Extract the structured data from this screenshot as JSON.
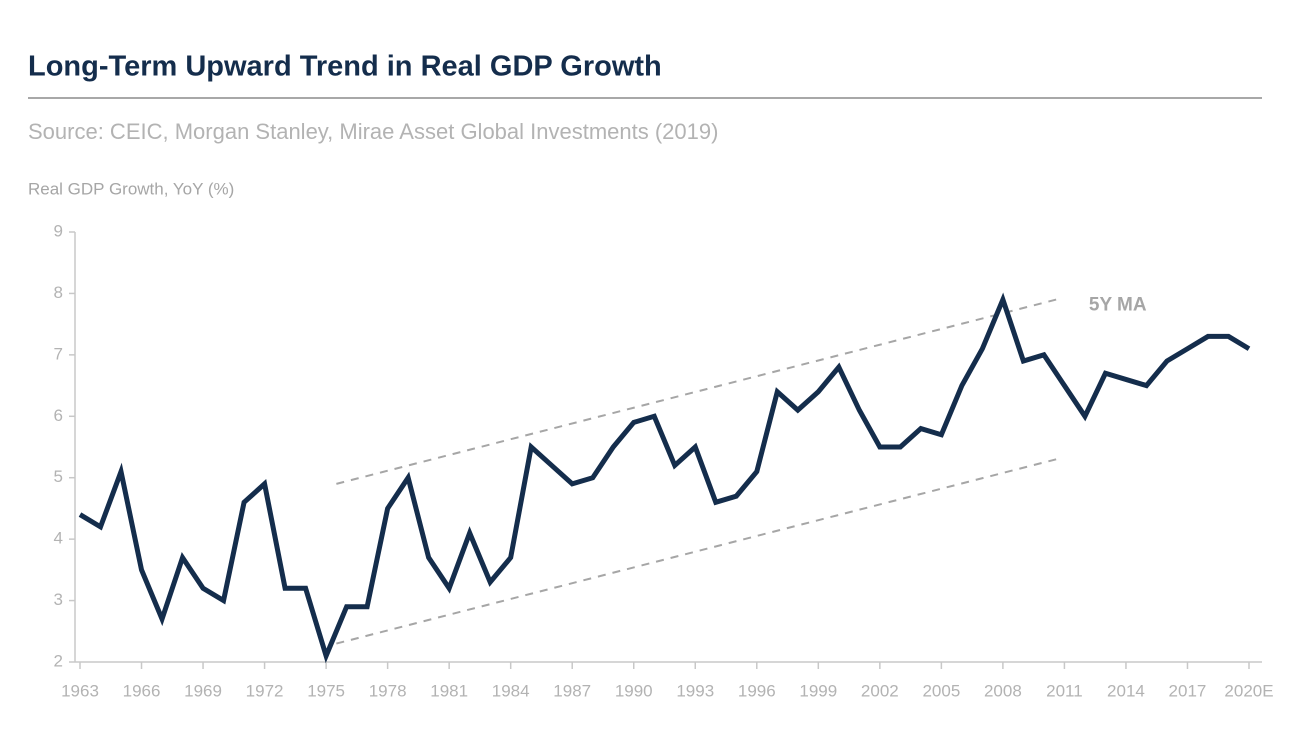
{
  "chart_data": {
    "type": "line",
    "title": "Long-Term Upward Trend in Real GDP Growth",
    "subtitle": "Source: CEIC, Morgan Stanley, Mirae Asset Global Investments (2019)",
    "y_label": "Real GDP Growth, YoY (%)",
    "x": [
      1963,
      1964,
      1965,
      1966,
      1967,
      1968,
      1969,
      1970,
      1971,
      1972,
      1973,
      1974,
      1975,
      1976,
      1977,
      1978,
      1979,
      1980,
      1981,
      1982,
      1983,
      1984,
      1985,
      1986,
      1987,
      1988,
      1989,
      1990,
      1991,
      1992,
      1993,
      1994,
      1995,
      1996,
      1997,
      1998,
      1999,
      2000,
      2001,
      2002,
      2003,
      2004,
      2005,
      2006,
      2007,
      2008,
      2009,
      2010,
      2011,
      2012,
      2013,
      2014,
      2015,
      2016,
      2017,
      2018,
      2019,
      2020
    ],
    "series": [
      {
        "color": "#142d4c",
        "values": [
          4.4,
          4.2,
          5.1,
          3.5,
          2.7,
          3.7,
          3.2,
          3.0,
          4.6,
          4.9,
          3.2,
          3.2,
          2.1,
          2.9,
          2.9,
          4.5,
          5.0,
          3.7,
          3.2,
          4.1,
          3.3,
          3.7,
          5.5,
          5.2,
          4.9,
          5.0,
          5.5,
          5.9,
          6.0,
          5.2,
          5.5,
          4.6,
          4.7,
          5.1,
          6.4,
          6.1,
          6.4,
          6.8,
          6.1,
          5.5,
          5.5,
          5.8,
          5.7,
          6.5,
          7.1,
          7.9,
          6.9,
          7.0,
          6.5,
          6.0,
          6.7,
          6.6,
          6.5,
          6.9,
          7.1,
          7.3,
          7.3,
          7.1
        ]
      }
    ],
    "trend_lines": [
      {
        "color": "#a6a6a6",
        "x": [
          1975.5,
          2010.6
        ],
        "values": [
          4.9,
          7.9
        ]
      },
      {
        "color": "#a6a6a6",
        "x": [
          1975.5,
          2010.6
        ],
        "values": [
          2.3,
          5.3
        ]
      }
    ],
    "annotations": [
      {
        "text": "5Y MA",
        "x": 2013.6,
        "y": 7.8
      }
    ],
    "xlim": [
      1963,
      2020
    ],
    "xticks": [
      1963,
      1966,
      1969,
      1972,
      1975,
      1978,
      1981,
      1984,
      1987,
      1990,
      1993,
      1996,
      1999,
      2002,
      2005,
      2008,
      2011,
      2014,
      2017,
      {
        "value": 2020,
        "label": "2020E"
      }
    ],
    "ylim": [
      2,
      9
    ],
    "yticks": [
      2,
      3,
      4,
      5,
      6,
      7,
      8,
      9
    ]
  }
}
